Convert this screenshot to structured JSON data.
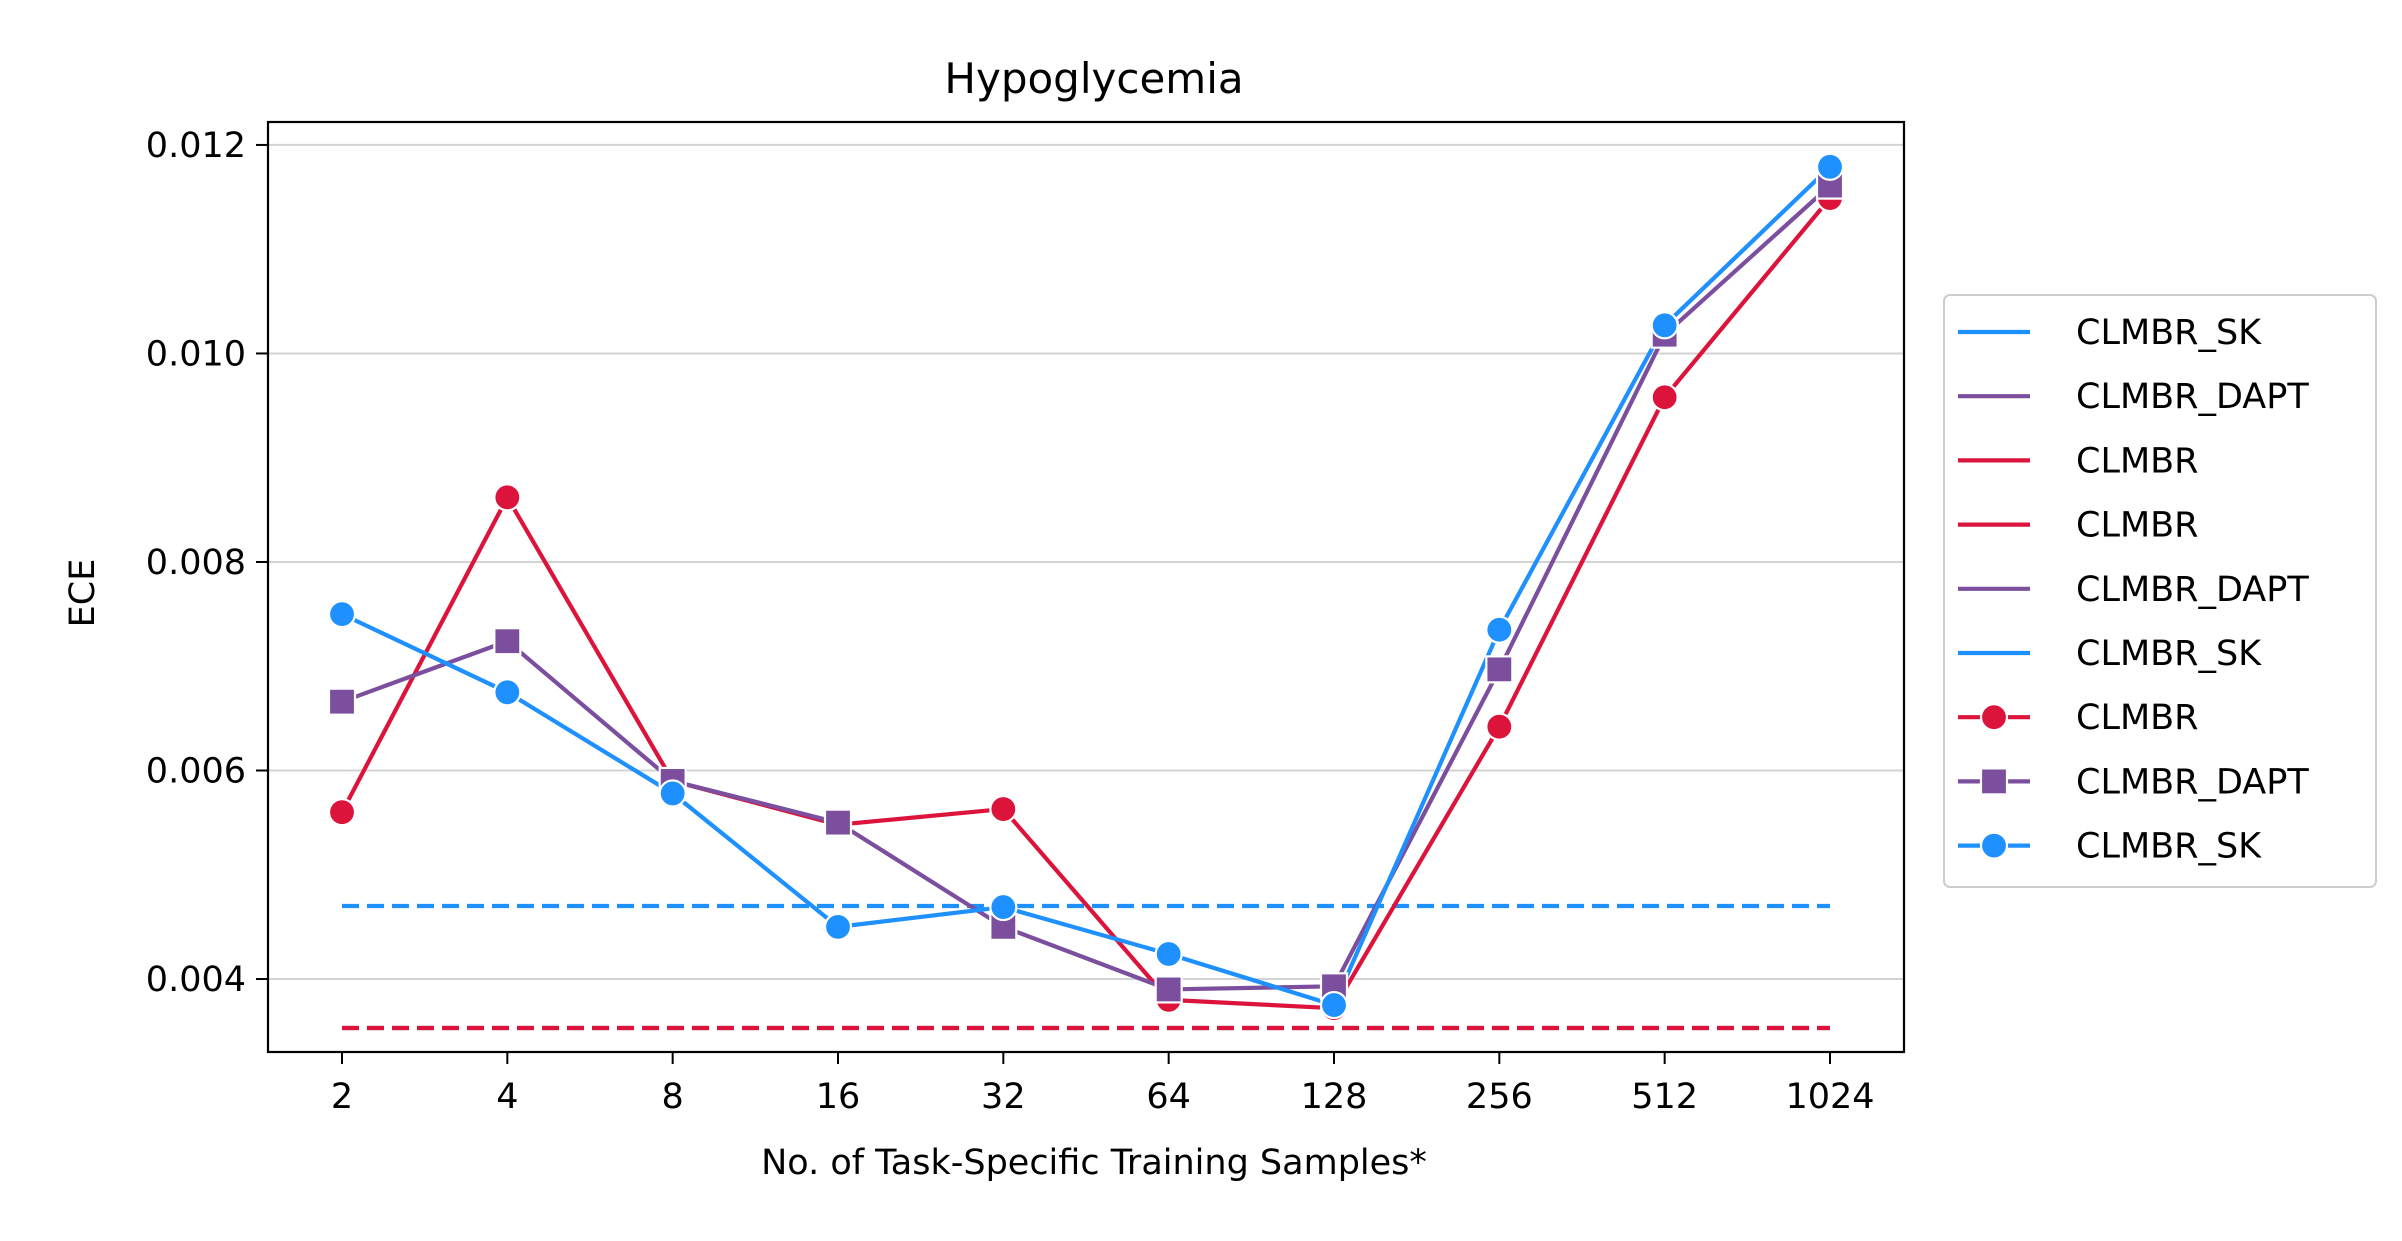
{
  "chart_data": {
    "type": "line",
    "title": "Hypoglycemia",
    "xlabel": "No. of Task-Specific Training Samples*",
    "ylabel": "ECE",
    "x": [
      "2",
      "4",
      "8",
      "16",
      "32",
      "64",
      "128",
      "256",
      "512",
      "1024"
    ],
    "ylim": [
      0.0033,
      0.01222
    ],
    "yticks": [
      0.004,
      0.006,
      0.008,
      0.01,
      0.012
    ],
    "ytick_labels": [
      "0.004",
      "0.006",
      "0.008",
      "0.010",
      "0.012"
    ],
    "grid": "horizontal",
    "legend_position": "center-right, outside plot",
    "colors": {
      "CLMBR": "#dc143c",
      "CLMBR_DAPT": "#7b4f9d",
      "CLMBR_SK": "#1e90ff"
    },
    "series": [
      {
        "name": "CLMBR",
        "marker": "circle",
        "color": "#dc143c",
        "values": [
          0.0056,
          0.00862,
          0.0059,
          0.00548,
          0.00563,
          0.0038,
          0.00372,
          0.00642,
          0.00958,
          0.01149
        ]
      },
      {
        "name": "CLMBR_DAPT",
        "marker": "square",
        "color": "#7b4f9d",
        "values": [
          0.00666,
          0.00724,
          0.0059,
          0.0055,
          0.0045,
          0.0039,
          0.00393,
          0.00697,
          0.01018,
          0.01161
        ]
      },
      {
        "name": "CLMBR_SK",
        "marker": "circle",
        "color": "#1e90ff",
        "values": [
          0.0075,
          0.00675,
          0.00578,
          0.0045,
          0.00469,
          0.00424,
          0.00375,
          0.00735,
          0.01027,
          0.01179
        ]
      }
    ],
    "baselines": [
      {
        "name": "CLMBR_SK",
        "color": "#1e90ff",
        "value": 0.0047,
        "style": "dashed"
      },
      {
        "name": "CLMBR_DAPT",
        "color": "#7b4f9d",
        "value": 0.00353,
        "style": "dashed"
      },
      {
        "name": "CLMBR",
        "color": "#dc143c",
        "value": 0.00353,
        "style": "dashed"
      }
    ],
    "legend": [
      {
        "label": "CLMBR_SK",
        "color": "#1e90ff",
        "marker": "none"
      },
      {
        "label": "CLMBR_DAPT",
        "color": "#7b4f9d",
        "marker": "none"
      },
      {
        "label": "CLMBR",
        "color": "#dc143c",
        "marker": "none"
      },
      {
        "label": "CLMBR",
        "color": "#dc143c",
        "marker": "none"
      },
      {
        "label": "CLMBR_DAPT",
        "color": "#7b4f9d",
        "marker": "none"
      },
      {
        "label": "CLMBR_SK",
        "color": "#1e90ff",
        "marker": "none"
      },
      {
        "label": "CLMBR",
        "color": "#dc143c",
        "marker": "circle"
      },
      {
        "label": "CLMBR_DAPT",
        "color": "#7b4f9d",
        "marker": "square"
      },
      {
        "label": "CLMBR_SK",
        "color": "#1e90ff",
        "marker": "circle"
      }
    ]
  }
}
